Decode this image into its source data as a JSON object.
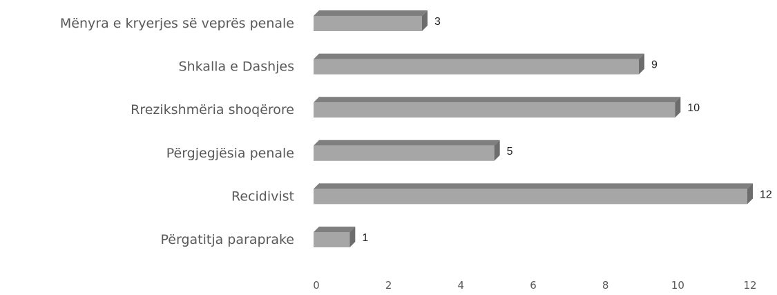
{
  "chart_data": {
    "type": "bar",
    "orientation": "horizontal",
    "style": "3d",
    "categories": [
      "Mënyra e kryerjes së veprës penale",
      "Shkalla e Dashjes",
      "Rrezikshmëria shoqërore",
      "Përgjegjësia penale",
      "Recidivist",
      "Përgatitja paraprake"
    ],
    "values": [
      3,
      9,
      10,
      5,
      12,
      1
    ],
    "xlim": [
      0,
      12
    ],
    "ticks": [
      "0",
      "2",
      "4",
      "6",
      "8",
      "10",
      "12"
    ],
    "grid": false,
    "legend": "none",
    "data_labels": true,
    "colors": {
      "bar_front": "#a6a6a6",
      "bar_top": "#7f7f7f",
      "bar_side": "#6d6d6d",
      "text": "#595959"
    }
  }
}
